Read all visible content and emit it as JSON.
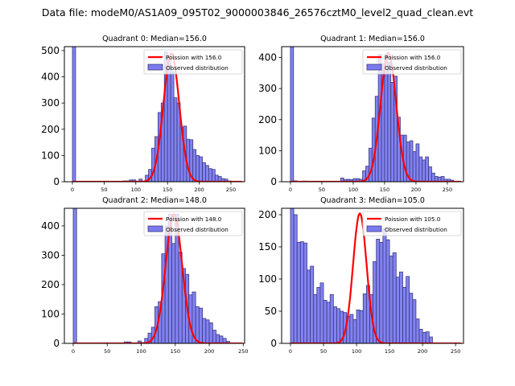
{
  "chart_data": [
    {
      "type": "bar",
      "title": "Quadrant 0: Median=156.0",
      "xlim": [
        -12.7,
        271.6
      ],
      "ylim": [
        0,
        515
      ],
      "xticks": [
        0,
        50,
        100,
        150,
        200,
        250
      ],
      "yticks": [
        0,
        100,
        200,
        300,
        400,
        500
      ],
      "bin_width": 5,
      "bins": [
        [
          0,
          560
        ],
        [
          80,
          3
        ],
        [
          85,
          3
        ],
        [
          90,
          7
        ],
        [
          95,
          7
        ],
        [
          105,
          10
        ],
        [
          110,
          2
        ],
        [
          115,
          25
        ],
        [
          120,
          47
        ],
        [
          125,
          128
        ],
        [
          130,
          172
        ],
        [
          135,
          264
        ],
        [
          140,
          300
        ],
        [
          145,
          495
        ],
        [
          150,
          470
        ],
        [
          155,
          420
        ],
        [
          160,
          320
        ],
        [
          165,
          300
        ],
        [
          170,
          208
        ],
        [
          175,
          212
        ],
        [
          180,
          162
        ],
        [
          185,
          160
        ],
        [
          190,
          123
        ],
        [
          195,
          100
        ],
        [
          200,
          95
        ],
        [
          205,
          73
        ],
        [
          210,
          62
        ],
        [
          215,
          50
        ],
        [
          220,
          47
        ],
        [
          225,
          25
        ],
        [
          230,
          20
        ],
        [
          235,
          12
        ],
        [
          240,
          10
        ],
        [
          245,
          3
        ],
        [
          250,
          2
        ]
      ],
      "poisson": {
        "label": "Poission with 156.0",
        "mu": 156.0,
        "peak": 490
      },
      "legend": [
        "Poission with 156.0",
        "Observed distribution"
      ],
      "legend_position": "upper-right"
    },
    {
      "type": "bar",
      "title": "Quadrant 1: Median=156.0",
      "xlim": [
        -14,
        275.7
      ],
      "ylim": [
        0,
        435
      ],
      "xticks": [
        0,
        50,
        100,
        150,
        200,
        250
      ],
      "yticks": [
        0,
        100,
        200,
        300,
        400
      ],
      "bin_width": 5,
      "bins": [
        [
          0,
          480
        ],
        [
          5,
          3
        ],
        [
          20,
          2
        ],
        [
          80,
          12
        ],
        [
          85,
          7
        ],
        [
          90,
          8
        ],
        [
          95,
          7
        ],
        [
          100,
          10
        ],
        [
          105,
          10
        ],
        [
          110,
          8
        ],
        [
          115,
          35
        ],
        [
          120,
          50
        ],
        [
          125,
          108
        ],
        [
          130,
          205
        ],
        [
          135,
          275
        ],
        [
          140,
          410
        ],
        [
          145,
          380
        ],
        [
          150,
          410
        ],
        [
          155,
          385
        ],
        [
          160,
          320
        ],
        [
          165,
          340
        ],
        [
          170,
          208
        ],
        [
          175,
          150
        ],
        [
          180,
          150
        ],
        [
          185,
          128
        ],
        [
          190,
          132
        ],
        [
          195,
          97
        ],
        [
          200,
          122
        ],
        [
          205,
          80
        ],
        [
          210,
          70
        ],
        [
          215,
          80
        ],
        [
          220,
          48
        ],
        [
          225,
          28
        ],
        [
          230,
          17
        ],
        [
          235,
          15
        ],
        [
          240,
          17
        ],
        [
          245,
          8
        ],
        [
          250,
          8
        ],
        [
          255,
          5
        ]
      ],
      "poisson": {
        "label": "Poission with 156.0",
        "mu": 156.0,
        "peak": 415
      },
      "legend": [
        "Poission with 156.0",
        "Observed distribution"
      ],
      "legend_position": "upper-right"
    },
    {
      "type": "bar",
      "title": "Quadrant 2: Median=148.0",
      "xlim": [
        -13,
        252
      ],
      "ylim": [
        0,
        460
      ],
      "xticks": [
        0,
        50,
        100,
        150,
        200,
        250
      ],
      "yticks": [
        0,
        100,
        200,
        300,
        400
      ],
      "bin_width": 5,
      "bins": [
        [
          0,
          520
        ],
        [
          75,
          5
        ],
        [
          80,
          5
        ],
        [
          95,
          8
        ],
        [
          100,
          3
        ],
        [
          105,
          17
        ],
        [
          110,
          35
        ],
        [
          115,
          55
        ],
        [
          120,
          125
        ],
        [
          125,
          142
        ],
        [
          130,
          305
        ],
        [
          135,
          400
        ],
        [
          140,
          440
        ],
        [
          145,
          340
        ],
        [
          150,
          440
        ],
        [
          155,
          310
        ],
        [
          160,
          255
        ],
        [
          165,
          235
        ],
        [
          170,
          165
        ],
        [
          175,
          175
        ],
        [
          180,
          125
        ],
        [
          185,
          120
        ],
        [
          190,
          85
        ],
        [
          195,
          80
        ],
        [
          200,
          70
        ],
        [
          205,
          45
        ],
        [
          210,
          30
        ],
        [
          215,
          25
        ],
        [
          220,
          17
        ],
        [
          225,
          7
        ]
      ],
      "poisson": {
        "label": "Poission with 148.0",
        "mu": 148.0,
        "peak": 440
      },
      "legend": [
        "Poission with 148.0",
        "Observed distribution"
      ],
      "legend_position": "upper-right"
    },
    {
      "type": "bar",
      "title": "Quadrant 3: Median=105.0",
      "xlim": [
        -13.4,
        262
      ],
      "ylim": [
        0,
        210
      ],
      "xticks": [
        0,
        50,
        100,
        150,
        200,
        250
      ],
      "yticks": [
        0,
        50,
        100,
        150,
        200
      ],
      "bin_width": 5,
      "bins": [
        [
          0,
          215
        ],
        [
          5,
          200
        ],
        [
          10,
          157
        ],
        [
          15,
          158
        ],
        [
          20,
          156
        ],
        [
          25,
          114
        ],
        [
          30,
          120
        ],
        [
          35,
          76
        ],
        [
          40,
          87
        ],
        [
          45,
          94
        ],
        [
          50,
          67
        ],
        [
          55,
          64
        ],
        [
          60,
          76
        ],
        [
          65,
          57
        ],
        [
          70,
          54
        ],
        [
          75,
          50
        ],
        [
          80,
          48
        ],
        [
          85,
          42
        ],
        [
          90,
          45
        ],
        [
          95,
          37
        ],
        [
          100,
          52
        ],
        [
          105,
          51
        ],
        [
          110,
          77
        ],
        [
          115,
          90
        ],
        [
          120,
          76
        ],
        [
          125,
          127
        ],
        [
          130,
          162
        ],
        [
          135,
          157
        ],
        [
          140,
          178
        ],
        [
          145,
          161
        ],
        [
          150,
          136
        ],
        [
          155,
          141
        ],
        [
          160,
          103
        ],
        [
          165,
          111
        ],
        [
          170,
          87
        ],
        [
          175,
          104
        ],
        [
          180,
          78
        ],
        [
          185,
          68
        ],
        [
          190,
          38
        ],
        [
          195,
          22
        ],
        [
          200,
          17
        ],
        [
          205,
          18
        ],
        [
          210,
          10
        ]
      ],
      "poisson": {
        "label": "Poission with 105.0",
        "mu": 105.0,
        "peak": 202
      },
      "legend": [
        "Poission with 105.0",
        "Observed distribution"
      ],
      "legend_position": "upper-right"
    }
  ],
  "suptitle": "Data file: modeM0/AS1A09_095T02_9000003846_26576cztM0_level2_quad_clean.evt",
  "colors": {
    "bar_fill": "#7b7bf0",
    "bar_edge": "#3a3a80",
    "poisson_line": "#ff0000",
    "axes": "#000000"
  }
}
